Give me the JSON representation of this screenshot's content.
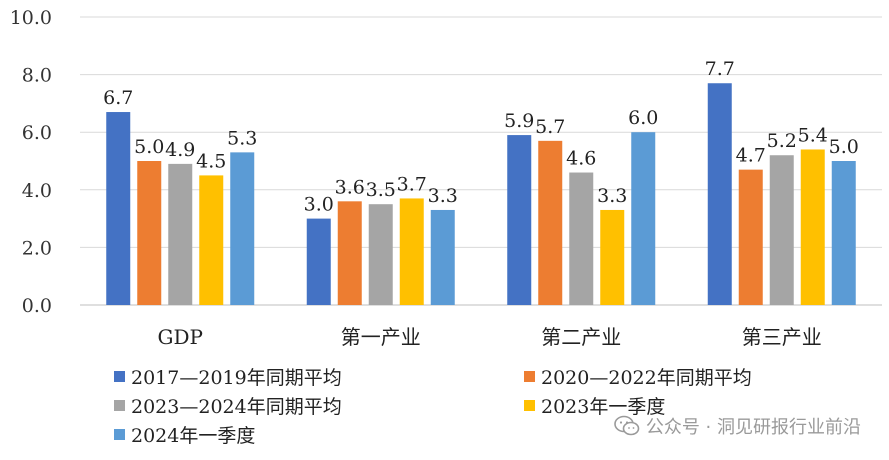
{
  "chart_data": {
    "type": "bar",
    "categories": [
      "GDP",
      "第一产业",
      "第二产业",
      "第三产业"
    ],
    "series": [
      {
        "name": "2017—2019年同期平均",
        "color": "#4472C4",
        "values": [
          6.7,
          3.0,
          5.9,
          7.7
        ]
      },
      {
        "name": "2020—2022年同期平均",
        "color": "#ED7D31",
        "values": [
          5.0,
          3.6,
          5.7,
          4.7
        ]
      },
      {
        "name": "2023—2024年同期平均",
        "color": "#A5A5A5",
        "values": [
          4.9,
          3.5,
          4.6,
          5.2
        ]
      },
      {
        "name": "2023年一季度",
        "color": "#FFC000",
        "values": [
          4.5,
          3.7,
          3.3,
          5.4
        ]
      },
      {
        "name": "2024年一季度",
        "color": "#5B9BD5",
        "values": [
          5.3,
          3.3,
          6.0,
          5.0
        ]
      }
    ],
    "y_ticks": [
      "0.0",
      "2.0",
      "4.0",
      "6.0",
      "8.0",
      "10.0"
    ],
    "ylim": [
      0,
      10
    ],
    "grid": true,
    "legend_position": "bottom"
  },
  "watermark": {
    "text": "公众号 · 洞见研报行业前沿",
    "icon": "wechat-icon"
  }
}
